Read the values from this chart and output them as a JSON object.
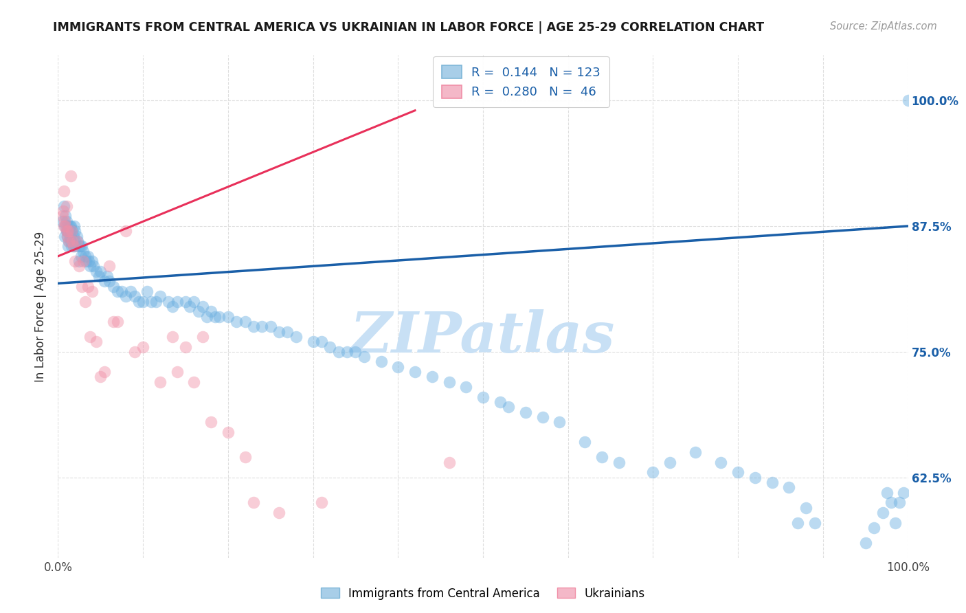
{
  "title": "IMMIGRANTS FROM CENTRAL AMERICA VS UKRAINIAN IN LABOR FORCE | AGE 25-29 CORRELATION CHART",
  "source": "Source: ZipAtlas.com",
  "ylabel": "In Labor Force | Age 25-29",
  "ytick_labels": [
    "62.5%",
    "75.0%",
    "87.5%",
    "100.0%"
  ],
  "ytick_values": [
    0.625,
    0.75,
    0.875,
    1.0
  ],
  "xtick_labels": [
    "0.0%",
    "",
    "",
    "",
    "",
    "",
    "",
    "",
    "",
    "",
    "100.0%"
  ],
  "xtick_values": [
    0.0,
    0.1,
    0.2,
    0.3,
    0.4,
    0.5,
    0.6,
    0.7,
    0.8,
    0.9,
    1.0
  ],
  "xrange": [
    0.0,
    1.0
  ],
  "yrange": [
    0.545,
    1.045
  ],
  "legend_entries": [
    {
      "label": "Immigrants from Central America",
      "color": "#7EB6E8",
      "R": 0.144,
      "N": 123
    },
    {
      "label": "Ukrainians",
      "color": "#F4A0B5",
      "R": 0.28,
      "N": 46
    }
  ],
  "blue_scatter_color": "#6AAEE0",
  "pink_scatter_color": "#F090A8",
  "blue_line_color": "#1A5FA8",
  "pink_line_color": "#E8305A",
  "blue_trend": {
    "x_start": 0.0,
    "y_start": 0.818,
    "x_end": 1.0,
    "y_end": 0.875
  },
  "pink_trend": {
    "x_start": 0.0,
    "y_start": 0.845,
    "x_end": 0.42,
    "y_end": 0.99
  },
  "watermark": "ZIPatlas",
  "watermark_color": "#C8E0F5",
  "background_color": "#FFFFFF",
  "grid_color": "#DEDEDE",
  "scatter_size": 160,
  "scatter_alpha": 0.45,
  "blue_points_x": [
    0.005,
    0.007,
    0.008,
    0.008,
    0.009,
    0.01,
    0.01,
    0.01,
    0.011,
    0.011,
    0.012,
    0.012,
    0.013,
    0.013,
    0.014,
    0.014,
    0.015,
    0.015,
    0.015,
    0.016,
    0.017,
    0.018,
    0.018,
    0.019,
    0.02,
    0.02,
    0.021,
    0.022,
    0.023,
    0.025,
    0.025,
    0.026,
    0.027,
    0.028,
    0.03,
    0.032,
    0.033,
    0.035,
    0.036,
    0.038,
    0.04,
    0.042,
    0.045,
    0.048,
    0.05,
    0.055,
    0.058,
    0.06,
    0.065,
    0.07,
    0.075,
    0.08,
    0.085,
    0.09,
    0.095,
    0.1,
    0.105,
    0.11,
    0.115,
    0.12,
    0.13,
    0.135,
    0.14,
    0.15,
    0.155,
    0.16,
    0.165,
    0.17,
    0.175,
    0.18,
    0.185,
    0.19,
    0.2,
    0.21,
    0.22,
    0.23,
    0.24,
    0.25,
    0.26,
    0.27,
    0.28,
    0.3,
    0.31,
    0.32,
    0.33,
    0.34,
    0.35,
    0.36,
    0.38,
    0.4,
    0.42,
    0.44,
    0.46,
    0.48,
    0.5,
    0.52,
    0.53,
    0.55,
    0.57,
    0.59,
    0.62,
    0.64,
    0.66,
    0.7,
    0.72,
    0.75,
    0.78,
    0.8,
    0.82,
    0.84,
    0.86,
    0.87,
    0.88,
    0.89,
    0.95,
    0.96,
    0.97,
    0.975,
    0.98,
    0.985,
    0.99,
    0.995,
    1.0
  ],
  "blue_points_y": [
    0.88,
    0.895,
    0.875,
    0.865,
    0.885,
    0.87,
    0.875,
    0.88,
    0.865,
    0.87,
    0.87,
    0.855,
    0.875,
    0.86,
    0.875,
    0.865,
    0.87,
    0.875,
    0.86,
    0.855,
    0.87,
    0.865,
    0.855,
    0.875,
    0.87,
    0.86,
    0.855,
    0.865,
    0.86,
    0.855,
    0.84,
    0.855,
    0.845,
    0.855,
    0.85,
    0.845,
    0.84,
    0.845,
    0.84,
    0.835,
    0.84,
    0.835,
    0.83,
    0.825,
    0.83,
    0.82,
    0.825,
    0.82,
    0.815,
    0.81,
    0.81,
    0.805,
    0.81,
    0.805,
    0.8,
    0.8,
    0.81,
    0.8,
    0.8,
    0.805,
    0.8,
    0.795,
    0.8,
    0.8,
    0.795,
    0.8,
    0.79,
    0.795,
    0.785,
    0.79,
    0.785,
    0.785,
    0.785,
    0.78,
    0.78,
    0.775,
    0.775,
    0.775,
    0.77,
    0.77,
    0.765,
    0.76,
    0.76,
    0.755,
    0.75,
    0.75,
    0.75,
    0.745,
    0.74,
    0.735,
    0.73,
    0.725,
    0.72,
    0.715,
    0.705,
    0.7,
    0.695,
    0.69,
    0.685,
    0.68,
    0.66,
    0.645,
    0.64,
    0.63,
    0.64,
    0.65,
    0.64,
    0.63,
    0.625,
    0.62,
    0.615,
    0.58,
    0.595,
    0.58,
    0.56,
    0.575,
    0.59,
    0.61,
    0.6,
    0.58,
    0.6,
    0.61,
    1.0
  ],
  "pink_points_x": [
    0.005,
    0.006,
    0.007,
    0.007,
    0.008,
    0.009,
    0.01,
    0.01,
    0.011,
    0.012,
    0.013,
    0.015,
    0.016,
    0.017,
    0.018,
    0.02,
    0.022,
    0.025,
    0.028,
    0.03,
    0.032,
    0.035,
    0.038,
    0.04,
    0.045,
    0.05,
    0.055,
    0.06,
    0.065,
    0.07,
    0.08,
    0.09,
    0.1,
    0.12,
    0.135,
    0.14,
    0.15,
    0.16,
    0.17,
    0.18,
    0.2,
    0.22,
    0.23,
    0.26,
    0.31,
    0.46
  ],
  "pink_points_y": [
    0.885,
    0.89,
    0.875,
    0.91,
    0.88,
    0.875,
    0.895,
    0.87,
    0.865,
    0.87,
    0.86,
    0.925,
    0.87,
    0.86,
    0.855,
    0.84,
    0.86,
    0.835,
    0.815,
    0.84,
    0.8,
    0.815,
    0.765,
    0.81,
    0.76,
    0.725,
    0.73,
    0.835,
    0.78,
    0.78,
    0.87,
    0.75,
    0.755,
    0.72,
    0.765,
    0.73,
    0.755,
    0.72,
    0.765,
    0.68,
    0.67,
    0.645,
    0.6,
    0.59,
    0.6,
    0.64
  ]
}
